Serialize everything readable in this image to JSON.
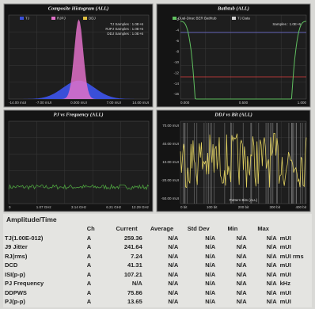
{
  "panels": [
    {
      "title": "Composite Histogram (ALL)",
      "legend": [
        {
          "name": "TJ",
          "color": "#3a4fd8"
        },
        {
          "name": "RJPJ",
          "color": "#e070c8"
        },
        {
          "name": "DDJ",
          "color": "#e0c040"
        }
      ],
      "notes": [
        "TJ Samples : 1.0E+6",
        "RJPJ Samples : 1.0E+6",
        "DDJ Samples : 1.0E+6"
      ],
      "xticks": [
        "-14.00 mUI",
        "-7.00 mUI",
        "0.000 mUI",
        "7.00 mUI",
        "14.00 mUI"
      ],
      "yticks": []
    },
    {
      "title": "Bathtub (ALL)",
      "legend": [
        {
          "name": "Dual-Dirac BER Bathtub",
          "color": "#60c060"
        },
        {
          "name": "TJ Data",
          "color": "#d0d0d0"
        }
      ],
      "notes": [
        "Samples : 1.0E+6"
      ],
      "xticks": [
        "0.000",
        "0.500",
        "1.000"
      ],
      "yticks": [
        "-2",
        "-4",
        "-6",
        "-8",
        "-10",
        "-12",
        "-14",
        "-16"
      ]
    },
    {
      "title": "PJ vs Frequency (ALL)",
      "legend": [],
      "notes": [],
      "xticks": [
        "0",
        "1.07 GHz",
        "3.14 GHz",
        "6.21 GHz",
        "12.29 GHz"
      ],
      "yticks": []
    },
    {
      "title": "DDJ vs Bit (ALL)",
      "legend": [],
      "notes": [
        "Pattern Bits (ALL)"
      ],
      "xticks": [
        "0 bit",
        "100 bit",
        "200 bit",
        "300 bit",
        "400 bit"
      ],
      "yticks": [
        "70.00 mUI",
        "40.00 mUI",
        "10.00 mUI",
        "-20.00 mUI",
        "-50.00 mUI"
      ]
    }
  ],
  "table": {
    "title": "Amplitude/Time",
    "columns": [
      "Ch",
      "Current",
      "Average",
      "Std Dev",
      "Min",
      "Max"
    ],
    "rows": [
      [
        "TJ(1.00E-012)",
        "A",
        "259.36",
        "N/A",
        "N/A",
        "N/A",
        "N/A",
        "mUI"
      ],
      [
        "J9 Jitter",
        "A",
        "241.64",
        "N/A",
        "N/A",
        "N/A",
        "N/A",
        "mUI"
      ],
      [
        "RJ(rms)",
        "A",
        "7.24",
        "N/A",
        "N/A",
        "N/A",
        "N/A",
        "mUI rms"
      ],
      [
        "DCD",
        "A",
        "41.31",
        "N/A",
        "N/A",
        "N/A",
        "N/A",
        "mUI"
      ],
      [
        "ISI(p-p)",
        "A",
        "107.21",
        "N/A",
        "N/A",
        "N/A",
        "N/A",
        "mUI"
      ],
      [
        "PJ Frequency",
        "A",
        "N/A",
        "N/A",
        "N/A",
        "N/A",
        "N/A",
        "kHz"
      ],
      [
        "DDPWS",
        "A",
        "75.86",
        "N/A",
        "N/A",
        "N/A",
        "N/A",
        "mUI"
      ],
      [
        "PJ(p-p)",
        "A",
        "13.65",
        "N/A",
        "N/A",
        "N/A",
        "N/A",
        "mUI"
      ]
    ]
  }
}
